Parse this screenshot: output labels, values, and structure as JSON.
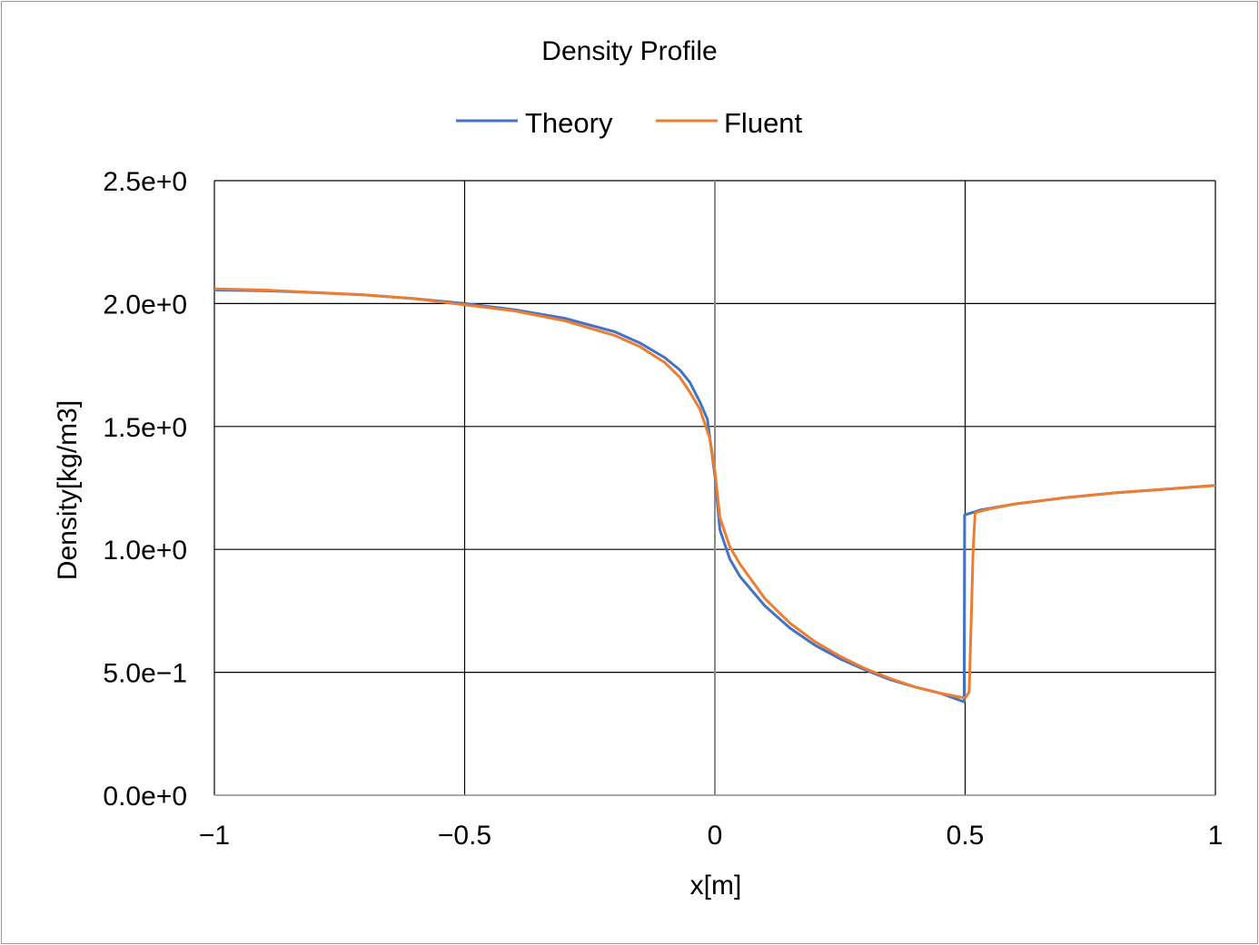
{
  "chart_data": {
    "type": "line",
    "title": "Density Profile",
    "xlabel": "x[m]",
    "ylabel": "Density[kg/m3]",
    "xlim": [
      -1,
      1
    ],
    "ylim": [
      0,
      2.5
    ],
    "x_ticks": [
      -1,
      -0.5,
      0,
      0.5,
      1
    ],
    "x_tick_labels": [
      "−1",
      "−0.5",
      "0",
      "0.5",
      "1"
    ],
    "y_ticks": [
      0,
      0.5,
      1.0,
      1.5,
      2.0,
      2.5
    ],
    "y_tick_labels": [
      "0.0e+0",
      "5.0e−1",
      "1.0e+0",
      "1.5e+0",
      "2.0e+0",
      "2.5e+0"
    ],
    "grid": true,
    "legend_position": "top",
    "series": [
      {
        "name": "Theory",
        "color": "#4472C4",
        "points": [
          [
            -1.0,
            2.055
          ],
          [
            -0.9,
            2.052
          ],
          [
            -0.8,
            2.045
          ],
          [
            -0.7,
            2.035
          ],
          [
            -0.6,
            2.02
          ],
          [
            -0.5,
            2.0
          ],
          [
            -0.4,
            1.975
          ],
          [
            -0.3,
            1.94
          ],
          [
            -0.2,
            1.885
          ],
          [
            -0.15,
            1.84
          ],
          [
            -0.1,
            1.78
          ],
          [
            -0.07,
            1.73
          ],
          [
            -0.05,
            1.68
          ],
          [
            -0.03,
            1.6
          ],
          [
            -0.015,
            1.53
          ],
          [
            0.0,
            1.3
          ],
          [
            0.01,
            1.08
          ],
          [
            0.03,
            0.96
          ],
          [
            0.05,
            0.89
          ],
          [
            0.1,
            0.77
          ],
          [
            0.15,
            0.68
          ],
          [
            0.2,
            0.61
          ],
          [
            0.25,
            0.555
          ],
          [
            0.3,
            0.51
          ],
          [
            0.35,
            0.47
          ],
          [
            0.4,
            0.44
          ],
          [
            0.45,
            0.415
          ],
          [
            0.498,
            0.38
          ],
          [
            0.499,
            1.14
          ],
          [
            0.53,
            1.16
          ],
          [
            0.6,
            1.185
          ],
          [
            0.7,
            1.21
          ],
          [
            0.8,
            1.23
          ],
          [
            0.9,
            1.245
          ],
          [
            1.0,
            1.26
          ]
        ]
      },
      {
        "name": "Fluent",
        "color": "#ED7D31",
        "points": [
          [
            -1.0,
            2.06
          ],
          [
            -0.9,
            2.055
          ],
          [
            -0.8,
            2.045
          ],
          [
            -0.7,
            2.035
          ],
          [
            -0.6,
            2.02
          ],
          [
            -0.5,
            1.995
          ],
          [
            -0.4,
            1.97
          ],
          [
            -0.3,
            1.93
          ],
          [
            -0.2,
            1.87
          ],
          [
            -0.15,
            1.825
          ],
          [
            -0.1,
            1.76
          ],
          [
            -0.07,
            1.7
          ],
          [
            -0.05,
            1.64
          ],
          [
            -0.03,
            1.57
          ],
          [
            -0.01,
            1.45
          ],
          [
            0.0,
            1.32
          ],
          [
            0.01,
            1.13
          ],
          [
            0.03,
            1.01
          ],
          [
            0.05,
            0.94
          ],
          [
            0.1,
            0.8
          ],
          [
            0.15,
            0.7
          ],
          [
            0.2,
            0.625
          ],
          [
            0.25,
            0.565
          ],
          [
            0.3,
            0.515
          ],
          [
            0.35,
            0.475
          ],
          [
            0.4,
            0.44
          ],
          [
            0.45,
            0.415
          ],
          [
            0.5,
            0.395
          ],
          [
            0.508,
            0.42
          ],
          [
            0.512,
            0.7
          ],
          [
            0.516,
            1.0
          ],
          [
            0.52,
            1.15
          ],
          [
            0.55,
            1.165
          ],
          [
            0.6,
            1.185
          ],
          [
            0.7,
            1.21
          ],
          [
            0.8,
            1.23
          ],
          [
            0.9,
            1.245
          ],
          [
            1.0,
            1.26
          ]
        ]
      }
    ]
  }
}
